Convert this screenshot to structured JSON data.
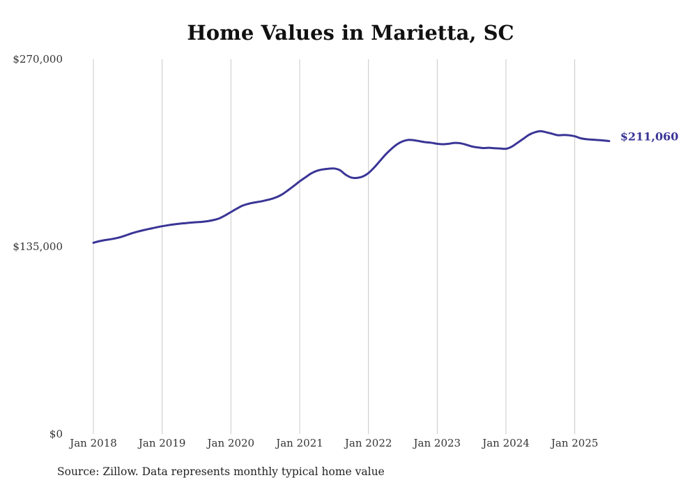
{
  "chart_data": {
    "type": "line",
    "title": "Home Values in Marietta, SC",
    "xlabel": "",
    "ylabel": "",
    "x_ticks": [
      "Jan 2018",
      "Jan 2019",
      "Jan 2020",
      "Jan 2021",
      "Jan 2022",
      "Jan 2023",
      "Jan 2024",
      "Jan 2025"
    ],
    "y_ticks": [
      {
        "value": 0,
        "label": "$0"
      },
      {
        "value": 135000,
        "label": "$135,000"
      },
      {
        "value": 270000,
        "label": "$270,000"
      }
    ],
    "ylim": [
      0,
      270000
    ],
    "xlim": [
      "2018-01",
      "2025-07"
    ],
    "grid": "vertical",
    "colors": {
      "line": "#3a3596",
      "grid": "#c8c8c8",
      "text": "#333333"
    },
    "end_label": "$211,060",
    "series": [
      {
        "x": [
          "2018-01",
          "2018-02",
          "2018-03",
          "2018-04",
          "2018-05",
          "2018-06",
          "2018-07",
          "2018-08",
          "2018-09",
          "2018-10",
          "2018-11",
          "2018-12",
          "2019-01",
          "2019-02",
          "2019-03",
          "2019-04",
          "2019-05",
          "2019-06",
          "2019-07",
          "2019-08",
          "2019-09",
          "2019-10",
          "2019-11",
          "2019-12",
          "2020-01",
          "2020-02",
          "2020-03",
          "2020-04",
          "2020-05",
          "2020-06",
          "2020-07",
          "2020-08",
          "2020-09",
          "2020-10",
          "2020-11",
          "2020-12",
          "2021-01",
          "2021-02",
          "2021-03",
          "2021-04",
          "2021-05",
          "2021-06",
          "2021-07",
          "2021-08",
          "2021-09",
          "2021-10",
          "2021-11",
          "2021-12",
          "2022-01",
          "2022-02",
          "2022-03",
          "2022-04",
          "2022-05",
          "2022-06",
          "2022-07",
          "2022-08",
          "2022-09",
          "2022-10",
          "2022-11",
          "2022-12",
          "2023-01",
          "2023-02",
          "2023-03",
          "2023-04",
          "2023-05",
          "2023-06",
          "2023-07",
          "2023-08",
          "2023-09",
          "2023-10",
          "2023-11",
          "2023-12",
          "2024-01",
          "2024-02",
          "2024-03",
          "2024-04",
          "2024-05",
          "2024-06",
          "2024-07",
          "2024-08",
          "2024-09",
          "2024-10",
          "2024-11",
          "2024-12",
          "2025-01",
          "2025-02",
          "2025-03",
          "2025-04",
          "2025-05",
          "2025-06",
          "2025-07"
        ],
        "values": [
          137800,
          138900,
          139700,
          140300,
          141100,
          142200,
          143600,
          145000,
          146100,
          147100,
          148000,
          148900,
          149700,
          150400,
          151000,
          151500,
          151900,
          152300,
          152600,
          152900,
          153400,
          154200,
          155400,
          157500,
          159900,
          162300,
          164500,
          165800,
          166700,
          167400,
          168300,
          169300,
          170700,
          172800,
          175700,
          178800,
          182000,
          184900,
          187700,
          189600,
          190600,
          191100,
          191300,
          190100,
          186900,
          184800,
          184500,
          185500,
          188000,
          192000,
          196700,
          201400,
          205400,
          208700,
          210900,
          211900,
          211600,
          210900,
          210200,
          209800,
          209100,
          208800,
          209100,
          209700,
          209500,
          208500,
          207200,
          206500,
          206000,
          206200,
          205900,
          205700,
          205500,
          207000,
          209800,
          212600,
          215500,
          217300,
          218200,
          217400,
          216400,
          215300,
          215400,
          215200,
          214500,
          213100,
          212400,
          212100,
          211800,
          211500,
          211060
        ]
      }
    ]
  },
  "source_note": "Source: Zillow. Data represents monthly typical home value"
}
